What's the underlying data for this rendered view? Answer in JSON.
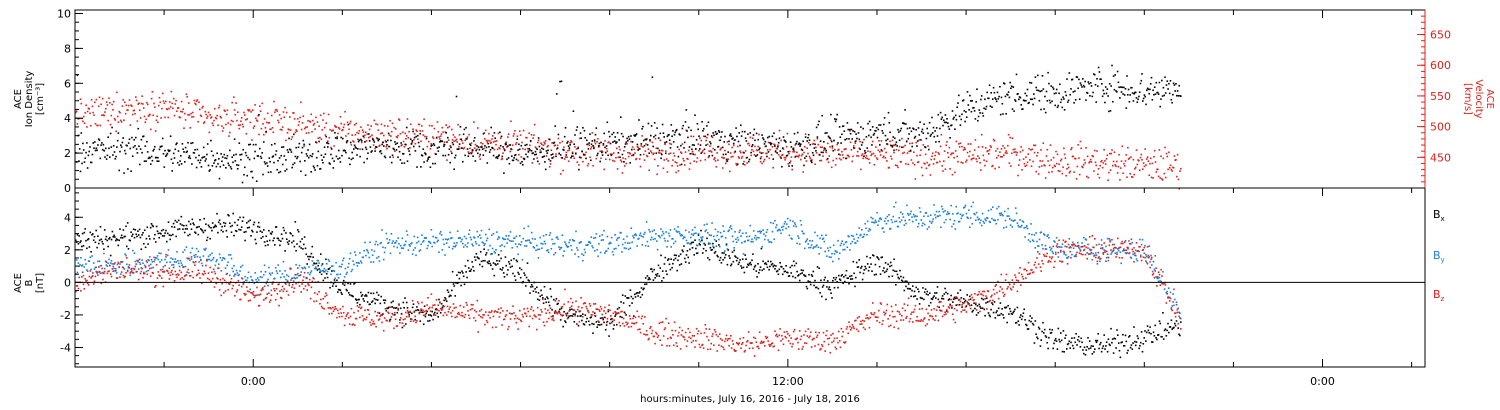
{
  "colors": {
    "black": "#000000",
    "red": "#e0201b",
    "blue": "#1a7fd8"
  },
  "x_axis": {
    "title": "hours:minutes, July 16, 2016 - July 18, 2016",
    "tick_labels": [
      "0:00",
      "12:00",
      "0:00"
    ],
    "range_hours": [
      -4,
      26.3
    ],
    "major_ticks_hours": [
      0,
      12,
      24
    ],
    "minor_tick_step_hours": 2
  },
  "panels": {
    "top": {
      "left_axis_label": [
        "ACE",
        "Ion Density",
        "[cm⁻³]"
      ],
      "right_axis_label": [
        "ACE",
        "Velocity",
        "[km/s]"
      ]
    },
    "bottom": {
      "left_axis_label": [
        "ACE",
        "B",
        "[nT]"
      ]
    }
  },
  "chart_data": [
    {
      "type": "scatter",
      "title": "",
      "xlabel": "hours:minutes, July 16, 2016 - July 18, 2016",
      "ylabel": "ACE Ion Density [cm⁻³]",
      "y2label": "ACE Velocity [km/s]",
      "xlim": [
        -4,
        26.3
      ],
      "ylim": [
        0,
        10.2
      ],
      "y2lim": [
        400,
        690
      ],
      "yticks": [
        0,
        2,
        4,
        6,
        8,
        10
      ],
      "y2ticks": [
        450,
        500,
        550,
        600,
        650
      ],
      "grid": false,
      "x": [
        -4,
        -3,
        -2,
        -1,
        0,
        1,
        2,
        3,
        4,
        5,
        6,
        7,
        8,
        9,
        10,
        11,
        12,
        13,
        14,
        15,
        16,
        17,
        18,
        19,
        20,
        20.8
      ],
      "series": [
        {
          "name": "",
          "axis": "left",
          "color": "#000000",
          "values": [
            2.1,
            2.3,
            2.0,
            1.9,
            1.6,
            1.8,
            2.3,
            2.4,
            2.2,
            2.4,
            2.0,
            2.3,
            2.6,
            2.8,
            3.0,
            2.6,
            2.3,
            2.8,
            3.2,
            3.1,
            4.6,
            5.4,
            5.5,
            5.9,
            5.6,
            5.8
          ]
        },
        {
          "name": "",
          "axis": "right",
          "color": "#e0201b",
          "values": [
            515,
            530,
            535,
            512,
            515,
            505,
            492,
            488,
            485,
            478,
            470,
            462,
            458,
            456,
            464,
            460,
            462,
            457,
            455,
            452,
            454,
            458,
            446,
            443,
            439,
            436
          ]
        }
      ]
    },
    {
      "type": "scatter",
      "title": "",
      "xlabel": "hours:minutes, July 16, 2016 - July 18, 2016",
      "ylabel": "ACE B [nT]",
      "xlim": [
        -4,
        26.3
      ],
      "ylim": [
        -5.2,
        5.8
      ],
      "yticks": [
        -4,
        -2,
        0,
        2,
        4
      ],
      "zero_line": 0,
      "legend_position": "right",
      "grid": false,
      "x": [
        -4,
        -3,
        -2,
        -1,
        0,
        1,
        2,
        3,
        4,
        5,
        6,
        7,
        8,
        9,
        10,
        11,
        12,
        13,
        14,
        15,
        16,
        17,
        18,
        19,
        20,
        20.8
      ],
      "series": [
        {
          "name": "Bx",
          "legend": {
            "base": "B",
            "sub": "x"
          },
          "color": "#000000",
          "values": [
            2.6,
            2.8,
            3.2,
            3.5,
            3.4,
            2.6,
            -0.4,
            -1.4,
            -2.1,
            1.5,
            0.6,
            -2.1,
            -2.5,
            0.7,
            2.4,
            1.2,
            0.8,
            -0.2,
            1.4,
            -0.8,
            -1.2,
            -1.7,
            -3.6,
            -3.9,
            -3.3,
            -2.5
          ]
        },
        {
          "name": "By",
          "legend": {
            "base": "B",
            "sub": "y"
          },
          "color": "#1a7fd8",
          "values": [
            1.0,
            1.1,
            1.4,
            1.7,
            0.1,
            0.7,
            1.0,
            2.4,
            2.5,
            2.6,
            2.5,
            2.3,
            2.4,
            2.9,
            3.0,
            2.6,
            3.6,
            1.8,
            3.9,
            4.0,
            4.2,
            4.0,
            2.0,
            2.1,
            2.0,
            -2.0
          ]
        },
        {
          "name": "Bz",
          "legend": {
            "base": "B",
            "sub": "z"
          },
          "color": "#e0201b",
          "values": [
            0.1,
            0.9,
            0.7,
            0.6,
            -0.9,
            0.3,
            -1.9,
            -2.2,
            -1.5,
            -2.0,
            -2.2,
            -1.5,
            -1.9,
            -3.0,
            -3.3,
            -3.8,
            -3.4,
            -3.5,
            -1.9,
            -2.0,
            -1.4,
            0.1,
            2.0,
            2.0,
            2.1,
            -2.3
          ]
        }
      ]
    }
  ]
}
